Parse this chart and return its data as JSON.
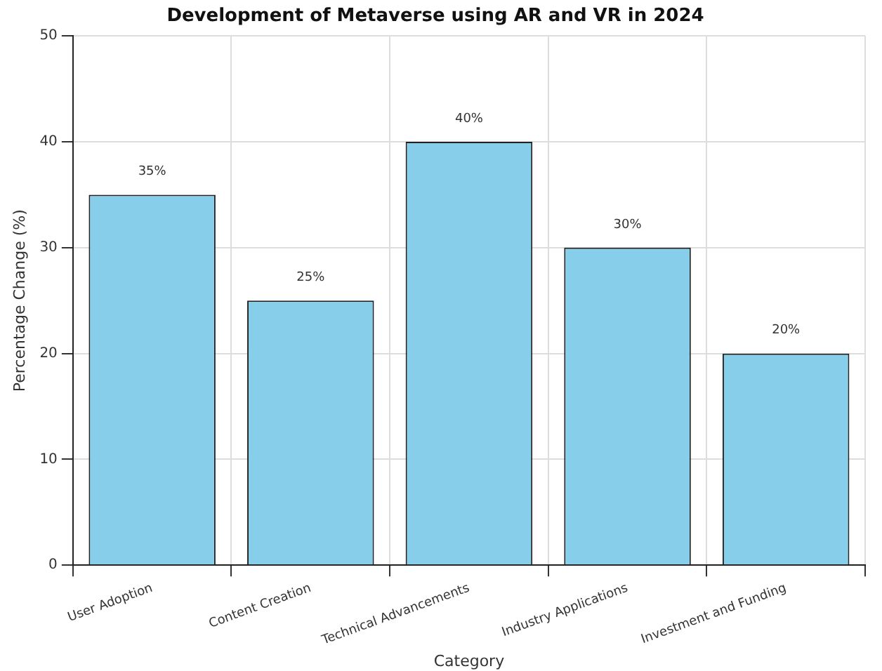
{
  "chart_data": {
    "type": "bar",
    "title": "Development of Metaverse using AR and VR in 2024",
    "xlabel": "Category",
    "ylabel": "Percentage Change (%)",
    "categories": [
      "User Adoption",
      "Content Creation",
      "Technical Advancements",
      "Industry Applications",
      "Investment and Funding"
    ],
    "values": [
      35,
      25,
      40,
      30,
      20
    ],
    "color": "#87ceeb",
    "value_labels": [
      "35%",
      "25%",
      "40%",
      "30%",
      "20%"
    ],
    "ylim": [
      0,
      50
    ],
    "yticks": [
      0,
      10,
      20,
      30,
      40,
      50
    ],
    "grid": true,
    "legend": false
  }
}
